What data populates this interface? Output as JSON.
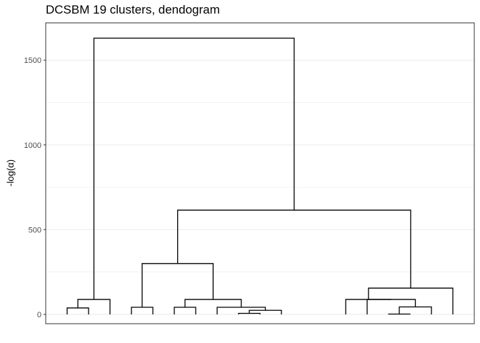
{
  "chart_data": {
    "type": "dendrogram",
    "title": "DCSBM 19 clusters, dendogram",
    "xlabel": "",
    "ylabel": "-log(α)",
    "ylim": [
      -55,
      1720
    ],
    "yticks": [
      0,
      500,
      1000,
      1500
    ],
    "grid": true,
    "leaves": 19,
    "merges": [
      {
        "left": "leaf:1",
        "right": "leaf:2",
        "height": 38
      },
      {
        "left": "leaf:4",
        "right": "leaf:5",
        "height": 42
      },
      {
        "left": "leaf:6",
        "right": "leaf:7",
        "height": 42
      },
      {
        "left": "leaf:3",
        "right": "merge:1",
        "height": 88
      },
      {
        "left": "leaf:9",
        "right": "leaf:10",
        "height": 6
      },
      {
        "left": "merge:5",
        "right": "leaf:11",
        "height": 24
      },
      {
        "left": "leaf:8",
        "right": "merge:6",
        "height": 42
      },
      {
        "left": "merge:3",
        "right": "merge:7",
        "height": 88
      },
      {
        "left": "leaf:16",
        "right": "leaf:17",
        "height": 2
      },
      {
        "left": "merge:9",
        "right": "leaf:18",
        "height": 44
      },
      {
        "left": "leaf:15",
        "right": "merge:10",
        "height": 88
      },
      {
        "left": "leaf:14",
        "right": "merge:11",
        "height": 88
      },
      {
        "left": "merge:2",
        "right": "merge:8",
        "height": 300
      },
      {
        "left": "merge:12",
        "right": "leaf:19",
        "height": 155
      },
      {
        "left": "merge:13",
        "right": "merge:14",
        "height": 615
      },
      {
        "left": "merge:4",
        "right": "merge:15",
        "height": 1630
      }
    ]
  }
}
